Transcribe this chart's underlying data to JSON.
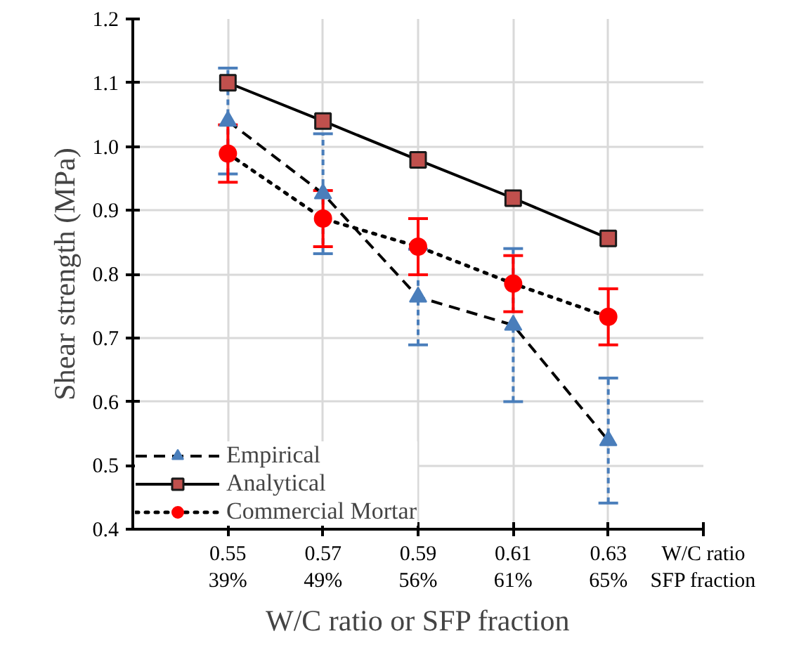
{
  "chart_data": {
    "type": "line",
    "xlabel": "W/C ratio or SFP fraction",
    "ylabel": "Shear strength (MPa)",
    "categories": [
      "0.55\n39%",
      "0.57\n49%",
      "0.59\n56%",
      "0.61\n61%",
      "0.63\n65%"
    ],
    "annotations": [
      "W/C ratio",
      "SFP fraction"
    ],
    "ylim": [
      0.4,
      1.2
    ],
    "yticks": [
      0.4,
      0.5,
      0.6,
      0.7,
      0.8,
      0.9,
      {
        "value": 1.0,
        "label": "1.0"
      },
      1.1,
      1.2
    ],
    "grid": true,
    "legend": "bottom left",
    "series": [
      {
        "name": "Empirical",
        "color": "#4a7ebb",
        "marker": "triangle",
        "line_style": "dashed",
        "values": [
          1.04,
          0.926,
          0.764,
          0.72,
          0.539
        ],
        "errors": [
          0.083,
          0.094,
          0.075,
          0.12,
          0.098
        ]
      },
      {
        "name": "Analytical",
        "color": "#c0504d",
        "marker": "square",
        "line_style": "solid",
        "values": [
          1.1,
          1.04,
          0.979,
          0.919,
          0.856
        ]
      },
      {
        "name": "Commercial Mortar",
        "color": "#ff0000",
        "marker": "circle",
        "line_style": "dotted",
        "values": [
          0.989,
          0.887,
          0.843,
          0.785,
          0.733
        ],
        "errors": [
          0.045,
          0.044,
          0.044,
          0.044,
          0.044
        ]
      }
    ]
  }
}
